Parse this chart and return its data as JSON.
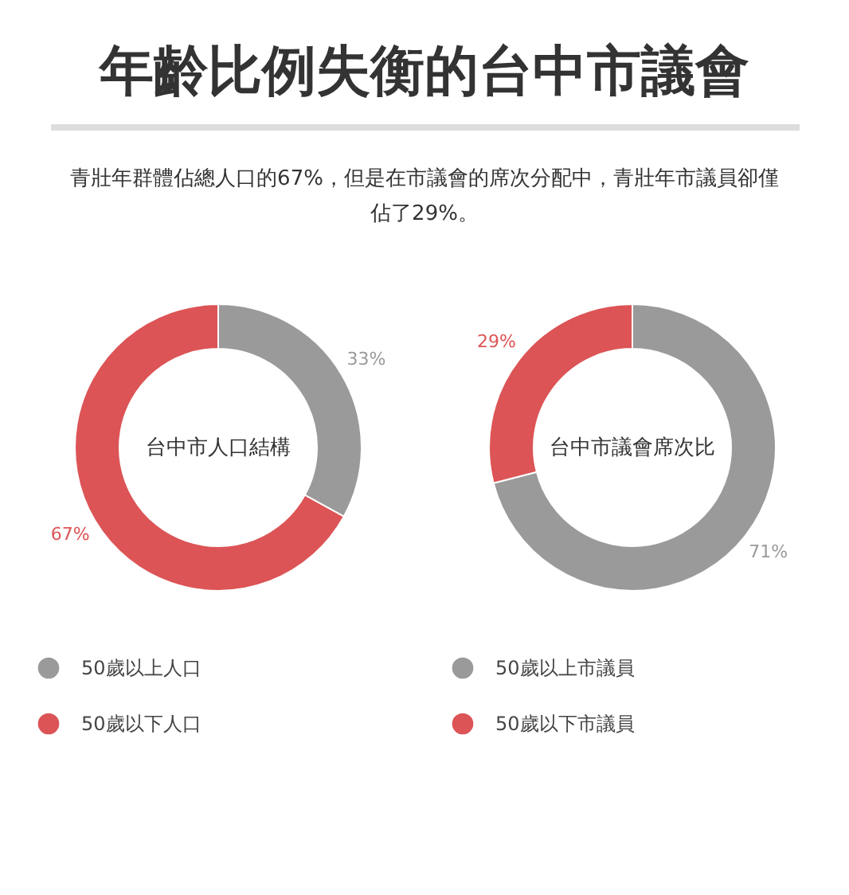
{
  "chart_data": [
    {
      "type": "other",
      "title": "年齡比例失衡的台中市議會",
      "subtitle": "青壯年群體佔總人口的67%，但是在市議會的席次分配中，青壯年市議員卻僅佔了29%。"
    },
    {
      "type": "donut",
      "annotations": [
        "台中市人口結構"
      ],
      "categories": [
        "50歲以上人口",
        "50歲以下人口"
      ],
      "values": [
        33,
        67
      ],
      "colors": [
        "#9a9a9a",
        "#dc5456"
      ],
      "value_labels": [
        "33%",
        "67%"
      ],
      "legend": "bottom"
    },
    {
      "type": "donut",
      "annotations": [
        "台中市議會席次比"
      ],
      "categories": [
        "50歲以上市議員",
        "50歲以下市議員"
      ],
      "values": [
        71,
        29
      ],
      "colors": [
        "#9a9a9a",
        "#dc5456"
      ],
      "value_labels": [
        "71%",
        "29%"
      ],
      "legend": "bottom"
    }
  ]
}
